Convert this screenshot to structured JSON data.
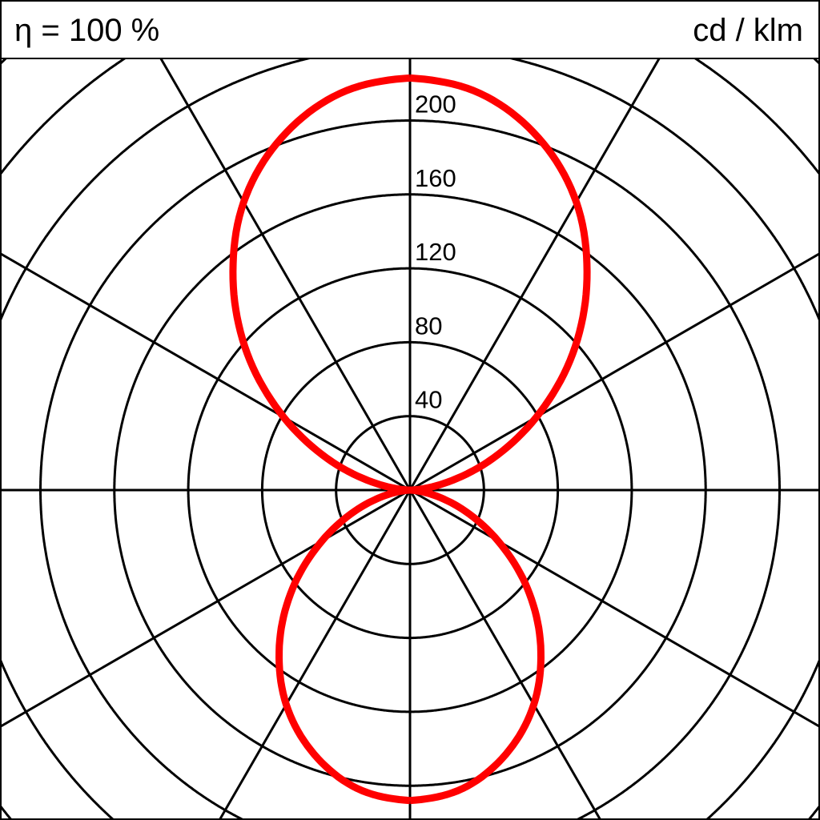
{
  "header": {
    "efficiency_label": "η = 100 %",
    "unit_label": "cd / klm"
  },
  "chart_data": {
    "type": "polar",
    "unit": "cd / klm",
    "radial_ticks": [
      40,
      80,
      120,
      160,
      200
    ],
    "radial_tick_labels": [
      "40",
      "80",
      "120",
      "160",
      "200"
    ],
    "grid_rings": [
      40,
      80,
      120,
      160,
      200,
      240,
      280,
      320,
      360
    ],
    "angular_grid_step_deg": 30,
    "grid": true,
    "series_color": "#ff0000",
    "series": [
      {
        "gamma_deg": [
          0,
          10,
          20,
          30,
          40,
          50,
          60,
          70,
          80,
          90,
          100,
          110,
          120,
          130,
          140,
          150,
          160,
          170,
          180
        ],
        "intensity": [
          168,
          164,
          152,
          134,
          110,
          83,
          55,
          30,
          10,
          0,
          16,
          45,
          79,
          115,
          149,
          180,
          203,
          218,
          223
        ]
      }
    ]
  }
}
